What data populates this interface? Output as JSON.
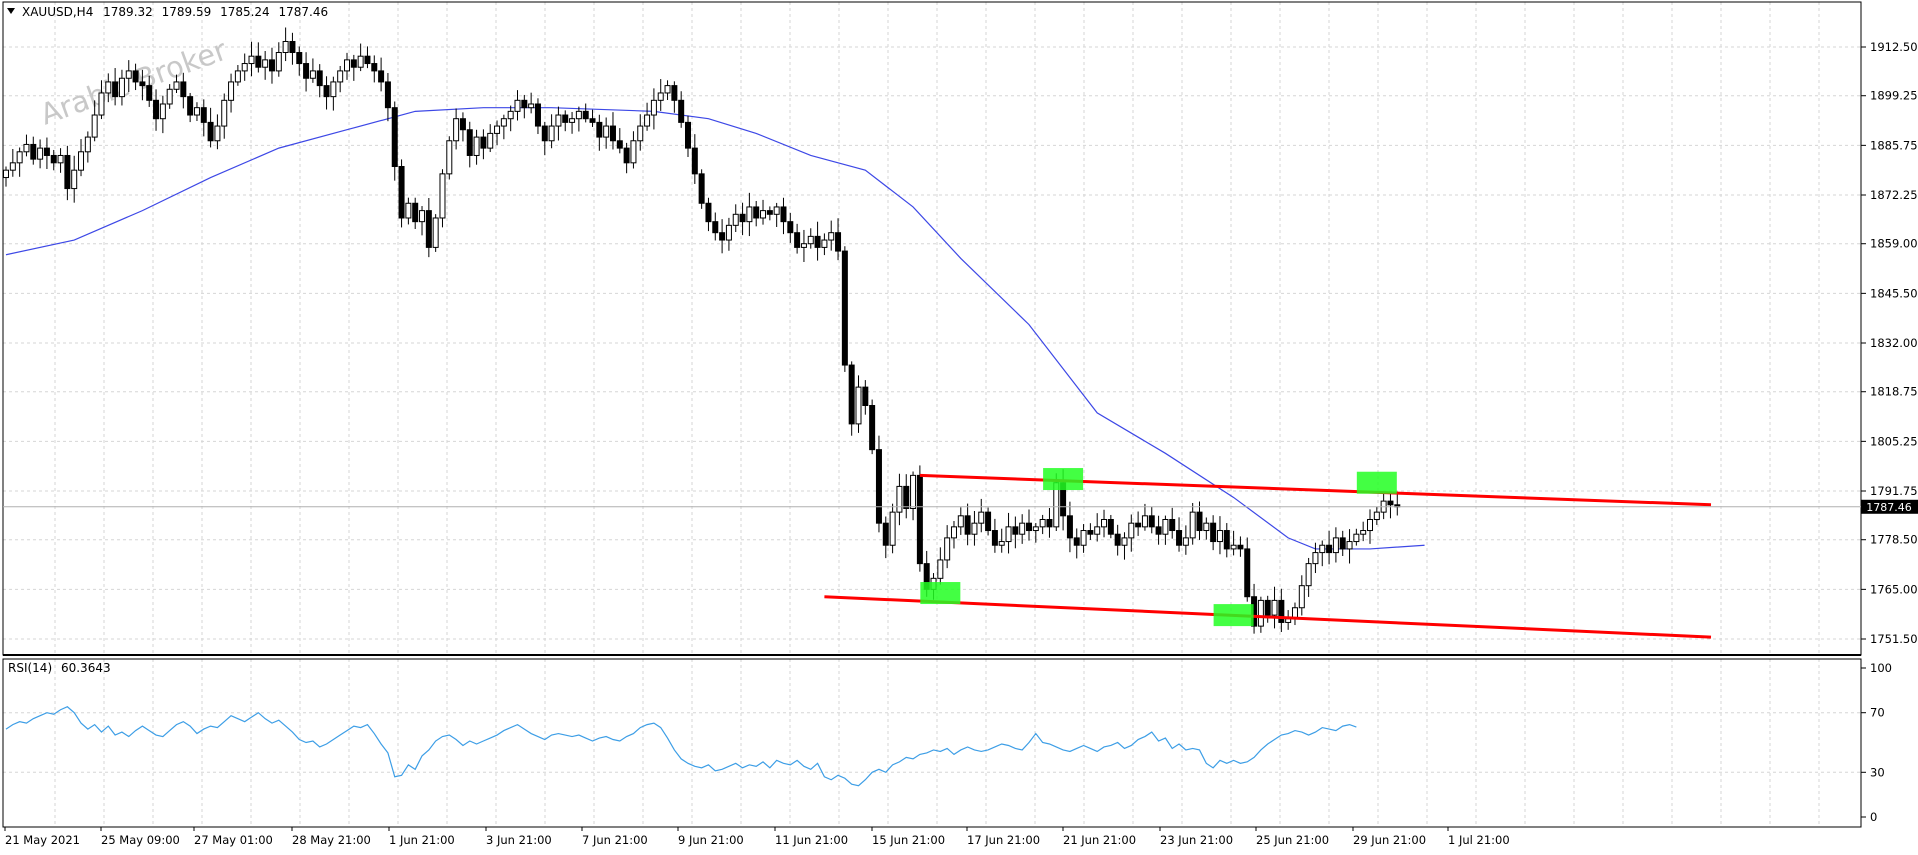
{
  "symbol_header": {
    "symbol": "XAUUSD,H4",
    "open": "1789.32",
    "high": "1789.59",
    "low": "1785.24",
    "close": "1787.46"
  },
  "watermark": "Arabic Broker",
  "rsi_header": {
    "label": "RSI(14)",
    "value": "60.3643"
  },
  "current_price_label": "1787.46",
  "colors": {
    "up_candle": "#ffffff",
    "down_candle": "#000000",
    "ma_line": "#3d48e6",
    "trend_lines": "#ff0000",
    "highlight_boxes": "#22ff22",
    "rsi_line": "#3d9ee6",
    "grid": "#d6d6d6"
  },
  "chart_data": [
    {
      "type": "candlestick",
      "title": "XAUUSD,H4",
      "ylim": [
        1745,
        1925
      ],
      "y_ticks": [
        1912.5,
        1899.25,
        1885.75,
        1872.25,
        1859.0,
        1845.5,
        1832.0,
        1818.75,
        1805.25,
        1791.75,
        1778.5,
        1765.0,
        1751.5
      ],
      "x_tick_labels": [
        "21 May 2021",
        "25 May 09:00",
        "27 May 01:00",
        "28 May 21:00",
        "1 Jun 21:00",
        "3 Jun 21:00",
        "7 Jun 21:00",
        "9 Jun 21:00",
        "11 Jun 21:00",
        "15 Jun 21:00",
        "17 Jun 21:00",
        "21 Jun 21:00",
        "23 Jun 21:00",
        "25 Jun 21:00",
        "29 Jun 21:00",
        "1 Jul 21:00"
      ],
      "grid": true,
      "current_price": 1787.46,
      "candles_close": [
        1879,
        1881,
        1884,
        1886,
        1882,
        1885,
        1883,
        1881,
        1883,
        1874,
        1879,
        1884,
        1888,
        1894,
        1900,
        1903,
        1899,
        1904,
        1906,
        1903,
        1902,
        1898,
        1893,
        1897,
        1901,
        1903,
        1899,
        1894,
        1896,
        1892,
        1887,
        1891,
        1898,
        1903,
        1906,
        1908,
        1910,
        1907,
        1909,
        1906,
        1911,
        1914,
        1911,
        1908,
        1904,
        1906,
        1902,
        1899,
        1903,
        1906,
        1909,
        1907,
        1910,
        1908,
        1906,
        1903,
        1896,
        1880,
        1866,
        1870,
        1865,
        1868,
        1858,
        1866,
        1878,
        1887,
        1893,
        1890,
        1883,
        1888,
        1885,
        1889,
        1891,
        1893,
        1895,
        1898,
        1896,
        1897,
        1891,
        1887,
        1891,
        1894,
        1892,
        1893,
        1895,
        1893,
        1892,
        1888,
        1891,
        1887,
        1885,
        1881,
        1887,
        1891,
        1894,
        1898,
        1900,
        1902,
        1898,
        1892,
        1885,
        1878,
        1870,
        1865,
        1862,
        1860,
        1864,
        1867,
        1865,
        1869,
        1866,
        1868,
        1867,
        1869,
        1865,
        1862,
        1858,
        1859,
        1861,
        1858,
        1860,
        1862,
        1857,
        1826,
        1810,
        1820,
        1815,
        1803,
        1783,
        1777,
        1786,
        1793,
        1787,
        1796,
        1772,
        1765,
        1768,
        1773,
        1779,
        1782,
        1785,
        1780,
        1783,
        1786,
        1781,
        1777,
        1778,
        1782,
        1780,
        1783,
        1781,
        1782,
        1784,
        1782,
        1794,
        1785,
        1779,
        1777,
        1781,
        1780,
        1782,
        1784,
        1780,
        1777,
        1779,
        1783,
        1782,
        1785,
        1782,
        1780,
        1784,
        1781,
        1777,
        1779,
        1786,
        1781,
        1783,
        1778,
        1781,
        1776,
        1777,
        1776,
        1763,
        1755,
        1762,
        1758,
        1762,
        1756,
        1757,
        1760,
        1766,
        1772,
        1775,
        1777,
        1775,
        1779,
        1776,
        1778,
        1780,
        1781,
        1784,
        1786,
        1789,
        1788,
        1787.46
      ],
      "moving_average": [
        {
          "x": 0,
          "y": 1856
        },
        {
          "x": 10,
          "y": 1860
        },
        {
          "x": 20,
          "y": 1868
        },
        {
          "x": 30,
          "y": 1877
        },
        {
          "x": 40,
          "y": 1885
        },
        {
          "x": 50,
          "y": 1890
        },
        {
          "x": 60,
          "y": 1895
        },
        {
          "x": 70,
          "y": 1896
        },
        {
          "x": 80,
          "y": 1896
        },
        {
          "x": 95,
          "y": 1895
        },
        {
          "x": 103,
          "y": 1893
        },
        {
          "x": 110,
          "y": 1889
        },
        {
          "x": 118,
          "y": 1883
        },
        {
          "x": 126,
          "y": 1879
        },
        {
          "x": 133,
          "y": 1869
        },
        {
          "x": 140,
          "y": 1855
        },
        {
          "x": 150,
          "y": 1837
        },
        {
          "x": 160,
          "y": 1813
        },
        {
          "x": 170,
          "y": 1802
        },
        {
          "x": 180,
          "y": 1790
        },
        {
          "x": 188,
          "y": 1779
        },
        {
          "x": 192,
          "y": 1776
        },
        {
          "x": 200,
          "y": 1776
        },
        {
          "x": 208,
          "y": 1777
        }
      ],
      "trend_lines": [
        {
          "name": "upper",
          "from": [
            134,
            1796
          ],
          "to": [
            250,
            1788
          ]
        },
        {
          "name": "lower",
          "from": [
            120,
            1763
          ],
          "to": [
            250,
            1752
          ]
        }
      ],
      "highlights": [
        {
          "x": 137,
          "y": 1764
        },
        {
          "x": 155,
          "y": 1795
        },
        {
          "x": 180,
          "y": 1758
        },
        {
          "x": 201,
          "y": 1794
        }
      ]
    },
    {
      "type": "line",
      "title": "RSI(14) 60.3643",
      "ylim": [
        0,
        100
      ],
      "y_ticks": [
        100,
        70,
        30,
        0
      ],
      "values": [
        59,
        62,
        64,
        63,
        66,
        68,
        70,
        69,
        72,
        74,
        70,
        63,
        59,
        62,
        57,
        61,
        55,
        57,
        54,
        58,
        61,
        58,
        55,
        54,
        58,
        62,
        64,
        61,
        56,
        59,
        61,
        60,
        64,
        68,
        66,
        64,
        67,
        70,
        66,
        63,
        65,
        61,
        57,
        52,
        50,
        51,
        47,
        49,
        52,
        55,
        58,
        61,
        60,
        62,
        56,
        49,
        43,
        27,
        28,
        35,
        32,
        41,
        45,
        51,
        54,
        55,
        52,
        48,
        51,
        49,
        51,
        53,
        55,
        58,
        60,
        62,
        59,
        56,
        54,
        52,
        55,
        56,
        55,
        54,
        55,
        53,
        51,
        53,
        54,
        52,
        51,
        54,
        56,
        60,
        62,
        63,
        60,
        53,
        45,
        39,
        36,
        34,
        33,
        35,
        31,
        32,
        34,
        36,
        33,
        35,
        34,
        37,
        33,
        38,
        36,
        35,
        38,
        34,
        32,
        36,
        27,
        25,
        28,
        26,
        22,
        21,
        25,
        30,
        32,
        30,
        35,
        37,
        40,
        39,
        42,
        43,
        45,
        44,
        46,
        42,
        45,
        47,
        45,
        44,
        45,
        47,
        49,
        48,
        46,
        45,
        50,
        56,
        50,
        49,
        47,
        45,
        44,
        46,
        48,
        46,
        44,
        47,
        48,
        50,
        46,
        48,
        52,
        54,
        57,
        51,
        53,
        46,
        49,
        45,
        46,
        45,
        36,
        33,
        38,
        36,
        38,
        36,
        37,
        40,
        45,
        49,
        52,
        55,
        56,
        58,
        57,
        55,
        57,
        60,
        59,
        58,
        61,
        62,
        60.36
      ]
    }
  ]
}
